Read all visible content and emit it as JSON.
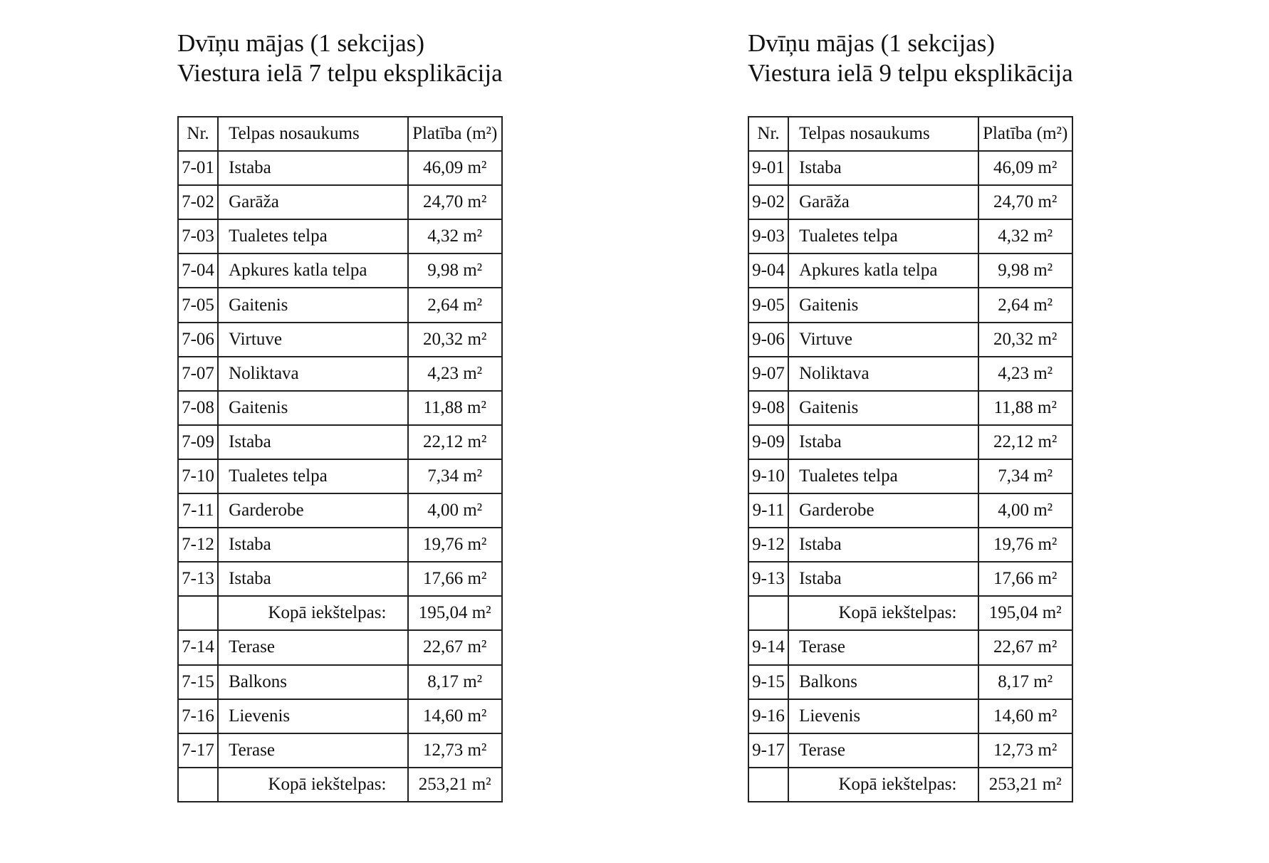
{
  "tables": [
    {
      "title_line1": "Dvīņu mājas (1 sekcijas)",
      "title_line2": "Viestura ielā 7 telpu eksplikācija",
      "header": {
        "nr": "Nr.",
        "name": "Telpas nosaukums",
        "area": "Platība (m²)"
      },
      "rows": [
        {
          "nr": "7-01",
          "name": "Istaba",
          "area": "46,09 m²"
        },
        {
          "nr": "7-02",
          "name": "Garāža",
          "area": "24,70 m²"
        },
        {
          "nr": "7-03",
          "name": "Tualetes telpa",
          "area": "4,32 m²"
        },
        {
          "nr": "7-04",
          "name": "Apkures katla telpa",
          "area": "9,98 m²"
        },
        {
          "nr": "7-05",
          "name": "Gaitenis",
          "area": "2,64 m²"
        },
        {
          "nr": "7-06",
          "name": "Virtuve",
          "area": "20,32 m²"
        },
        {
          "nr": "7-07",
          "name": "Noliktava",
          "area": "4,23 m²"
        },
        {
          "nr": "7-08",
          "name": "Gaitenis",
          "area": "11,88 m²"
        },
        {
          "nr": "7-09",
          "name": "Istaba",
          "area": "22,12 m²"
        },
        {
          "nr": "7-10",
          "name": "Tualetes telpa",
          "area": "7,34 m²"
        },
        {
          "nr": "7-11",
          "name": "Garderobe",
          "area": "4,00 m²"
        },
        {
          "nr": "7-12",
          "name": "Istaba",
          "area": "19,76 m²"
        },
        {
          "nr": "7-13",
          "name": "Istaba",
          "area": "17,66 m²"
        },
        {
          "total": true,
          "name": "Kopā iekštelpas:",
          "area": "195,04 m²"
        },
        {
          "nr": "7-14",
          "name": "Terase",
          "area": "22,67 m²"
        },
        {
          "nr": "7-15",
          "name": "Balkons",
          "area": "8,17 m²"
        },
        {
          "nr": "7-16",
          "name": "Lievenis",
          "area": "14,60 m²"
        },
        {
          "nr": "7-17",
          "name": "Terase",
          "area": "12,73 m²"
        },
        {
          "total": true,
          "name": "Kopā iekštelpas:",
          "area": "253,21 m²"
        }
      ]
    },
    {
      "title_line1": "Dvīņu mājas (1 sekcijas)",
      "title_line2": "Viestura ielā 9 telpu eksplikācija",
      "header": {
        "nr": "Nr.",
        "name": "Telpas nosaukums",
        "area": "Platība (m²)"
      },
      "rows": [
        {
          "nr": "9-01",
          "name": "Istaba",
          "area": "46,09 m²"
        },
        {
          "nr": "9-02",
          "name": "Garāža",
          "area": "24,70 m²"
        },
        {
          "nr": "9-03",
          "name": "Tualetes telpa",
          "area": "4,32 m²"
        },
        {
          "nr": "9-04",
          "name": "Apkures katla telpa",
          "area": "9,98 m²"
        },
        {
          "nr": "9-05",
          "name": "Gaitenis",
          "area": "2,64 m²"
        },
        {
          "nr": "9-06",
          "name": "Virtuve",
          "area": "20,32 m²"
        },
        {
          "nr": "9-07",
          "name": "Noliktava",
          "area": "4,23 m²"
        },
        {
          "nr": "9-08",
          "name": "Gaitenis",
          "area": "11,88 m²"
        },
        {
          "nr": "9-09",
          "name": "Istaba",
          "area": "22,12 m²"
        },
        {
          "nr": "9-10",
          "name": "Tualetes telpa",
          "area": "7,34 m²"
        },
        {
          "nr": "9-11",
          "name": "Garderobe",
          "area": "4,00 m²"
        },
        {
          "nr": "9-12",
          "name": "Istaba",
          "area": "19,76 m²"
        },
        {
          "nr": "9-13",
          "name": "Istaba",
          "area": "17,66 m²"
        },
        {
          "total": true,
          "name": "Kopā iekštelpas:",
          "area": "195,04 m²"
        },
        {
          "nr": "9-14",
          "name": "Terase",
          "area": "22,67 m²"
        },
        {
          "nr": "9-15",
          "name": "Balkons",
          "area": "8,17 m²"
        },
        {
          "nr": "9-16",
          "name": "Lievenis",
          "area": "14,60 m²"
        },
        {
          "nr": "9-17",
          "name": "Terase",
          "area": "12,73 m²"
        },
        {
          "total": true,
          "name": "Kopā iekštelpas:",
          "area": "253,21 m²"
        }
      ]
    }
  ]
}
